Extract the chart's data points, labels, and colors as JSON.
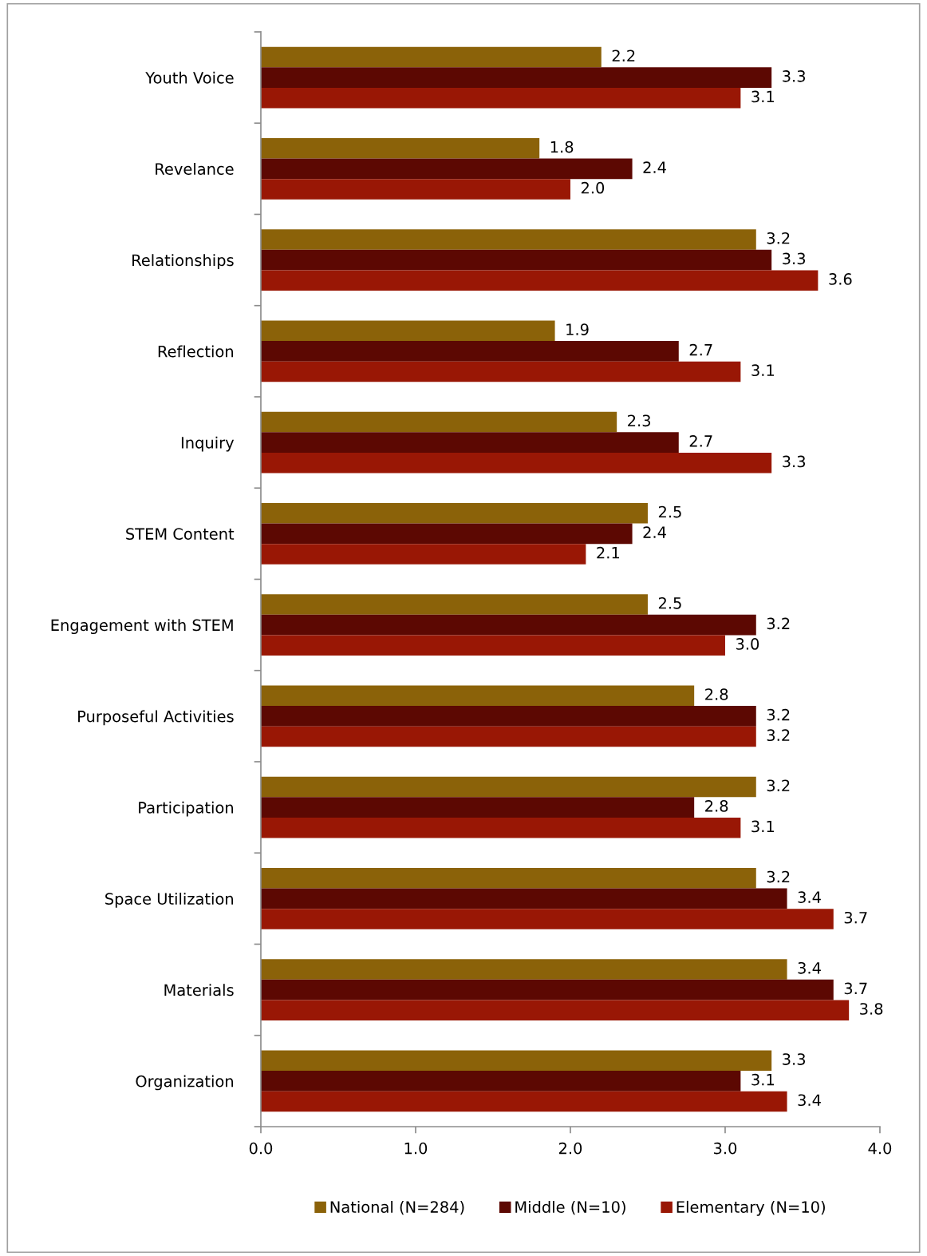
{
  "chart_data": {
    "type": "bar",
    "orientation": "horizontal",
    "categories": [
      "Youth Voice",
      "Revelance",
      "Relationships",
      "Reflection",
      "Inquiry",
      "STEM Content",
      "Engagement with STEM",
      "Purposeful Activities",
      "Participation",
      "Space Utilization",
      "Materials",
      "Organization"
    ],
    "series": [
      {
        "name": "National (N=284)",
        "color": "#8b6209",
        "values": [
          2.2,
          1.8,
          3.2,
          1.9,
          2.3,
          2.5,
          2.5,
          2.8,
          3.2,
          3.2,
          3.4,
          3.3
        ],
        "value_labels": [
          "2.2",
          "1.8",
          "3.2",
          "1.9",
          "2.3",
          "2.5",
          "2.5",
          "2.8",
          "3.2",
          "3.2",
          "3.4",
          "3.3"
        ]
      },
      {
        "name": "Middle (N=10)",
        "color": "#5c0802",
        "values": [
          3.3,
          2.4,
          3.3,
          2.7,
          2.7,
          2.4,
          3.2,
          3.2,
          2.8,
          3.4,
          3.7,
          3.1
        ],
        "value_labels": [
          "3.3",
          "2.4",
          "3.3",
          "2.7",
          "2.7",
          "2.4",
          "3.2",
          "3.2",
          "2.8",
          "3.4",
          "3.7",
          "3.1"
        ]
      },
      {
        "name": "Elementary (N=10)",
        "color": "#991705",
        "values": [
          3.1,
          2.0,
          3.6,
          3.1,
          3.3,
          2.1,
          3.0,
          3.2,
          3.1,
          3.7,
          3.8,
          3.4
        ],
        "value_labels": [
          "3.1",
          "2.0",
          "3.6",
          "3.1",
          "3.3",
          "2.1",
          "3.0",
          "3.2",
          "3.1",
          "3.7",
          "3.8",
          "3.4"
        ]
      }
    ],
    "xlim": [
      0,
      4
    ],
    "xticks": [
      {
        "value": 0,
        "label": "0.0"
      },
      {
        "value": 1,
        "label": "1.0"
      },
      {
        "value": 2,
        "label": "2.0"
      },
      {
        "value": 3,
        "label": "3.0"
      },
      {
        "value": 4,
        "label": "4.0"
      }
    ],
    "legend": "bottom",
    "grid": false
  }
}
